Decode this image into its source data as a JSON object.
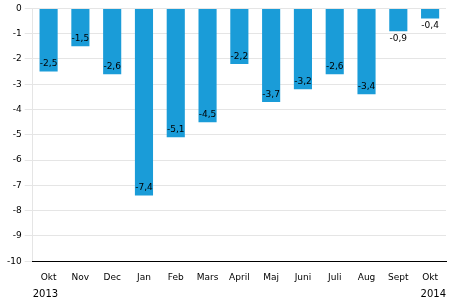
{
  "chart_data": {
    "type": "bar",
    "categories": [
      "Okt",
      "Nov",
      "Dec",
      "Jan",
      "Feb",
      "Mars",
      "April",
      "Maj",
      "Juni",
      "Juli",
      "Aug",
      "Sept",
      "Okt"
    ],
    "values": [
      -2.5,
      -1.5,
      -2.6,
      -7.4,
      -5.1,
      -4.5,
      -2.2,
      -3.7,
      -3.2,
      -2.6,
      -3.4,
      -0.9,
      -0.4
    ],
    "value_labels": [
      "-2,5",
      "-1,5",
      "-2,6",
      "-7,4",
      "-5,1",
      "-4,5",
      "-2,2",
      "-3,7",
      "-3,2",
      "-2,6",
      "-3,4",
      "-0,9",
      "-0,4"
    ],
    "color": "#1a9cd8",
    "ylim": [
      -10,
      0
    ],
    "yticks": [
      0,
      -1,
      -2,
      -3,
      -4,
      -5,
      -6,
      -7,
      -8,
      -9,
      -10
    ],
    "grid": true,
    "data_labels": true,
    "annotations": [
      "2013",
      "2014"
    ]
  }
}
